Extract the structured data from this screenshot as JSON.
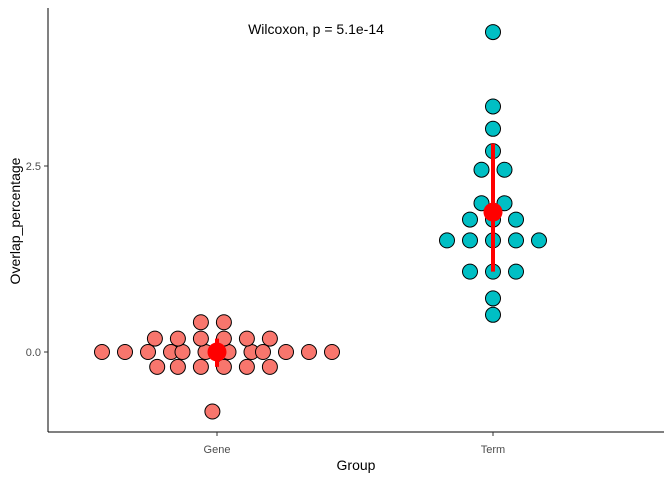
{
  "chart_data": {
    "type": "scatter",
    "subtype": "dotplot",
    "title": "",
    "xlabel": "Group",
    "ylabel": "Overlap_percentage",
    "categories": [
      "Gene",
      "Term"
    ],
    "y_ticks": [
      0.0,
      2.5
    ],
    "y_tick_labels": [
      "0.0",
      "2.5"
    ],
    "ylim": [
      -1.4,
      4.6
    ],
    "grid": false,
    "legend": "none",
    "annotation": "Wilcoxon, p = 5.1e-14",
    "colors": {
      "Gene": "#f8766d",
      "Term": "#00bfc4",
      "summary": "#ff0000"
    },
    "series": [
      {
        "category": "Gene",
        "points": [
          {
            "offset": -5,
            "y": 0.0
          },
          {
            "offset": -4,
            "y": 0.0
          },
          {
            "offset": -3,
            "y": 0.0
          },
          {
            "offset": -2,
            "y": 0.0
          },
          {
            "offset": -1.5,
            "y": 0.0
          },
          {
            "offset": -0.5,
            "y": 0.0
          },
          {
            "offset": 0.5,
            "y": 0.0
          },
          {
            "offset": 1.5,
            "y": 0.0
          },
          {
            "offset": 2,
            "y": 0.0
          },
          {
            "offset": 3,
            "y": 0.0
          },
          {
            "offset": 4,
            "y": 0.0
          },
          {
            "offset": 5,
            "y": 0.0
          },
          {
            "offset": -2.6,
            "y": -0.2
          },
          {
            "offset": -1.7,
            "y": -0.2
          },
          {
            "offset": -0.7,
            "y": -0.2
          },
          {
            "offset": 0.3,
            "y": -0.2
          },
          {
            "offset": 1.3,
            "y": -0.2
          },
          {
            "offset": 2.3,
            "y": -0.2
          },
          {
            "offset": -2.7,
            "y": 0.18
          },
          {
            "offset": -1.7,
            "y": 0.18
          },
          {
            "offset": -0.7,
            "y": 0.18
          },
          {
            "offset": 0.3,
            "y": 0.18
          },
          {
            "offset": 1.3,
            "y": 0.18
          },
          {
            "offset": 2.3,
            "y": 0.18
          },
          {
            "offset": -0.7,
            "y": 0.4
          },
          {
            "offset": 0.3,
            "y": 0.4
          },
          {
            "offset": -0.2,
            "y": -0.8
          }
        ],
        "mean": 0.0,
        "sd_low": -0.2,
        "sd_high": 0.18
      },
      {
        "category": "Term",
        "points": [
          {
            "offset": 0,
            "y": 4.3
          },
          {
            "offset": 0,
            "y": 3.3
          },
          {
            "offset": 0,
            "y": 3.0
          },
          {
            "offset": 0,
            "y": 2.7
          },
          {
            "offset": -0.5,
            "y": 2.45
          },
          {
            "offset": 0.5,
            "y": 2.45
          },
          {
            "offset": -0.5,
            "y": 2.0
          },
          {
            "offset": 0.5,
            "y": 2.0
          },
          {
            "offset": -1,
            "y": 1.78
          },
          {
            "offset": 0,
            "y": 1.78
          },
          {
            "offset": 1,
            "y": 1.78
          },
          {
            "offset": -2,
            "y": 1.5
          },
          {
            "offset": -1,
            "y": 1.5
          },
          {
            "offset": 0,
            "y": 1.5
          },
          {
            "offset": 1,
            "y": 1.5
          },
          {
            "offset": 2,
            "y": 1.5
          },
          {
            "offset": -1,
            "y": 1.08
          },
          {
            "offset": 0,
            "y": 1.08
          },
          {
            "offset": 1,
            "y": 1.08
          },
          {
            "offset": 0,
            "y": 0.72
          },
          {
            "offset": 0,
            "y": 0.5
          }
        ],
        "mean": 1.88,
        "sd_low": 1.08,
        "sd_high": 2.8
      }
    ]
  }
}
